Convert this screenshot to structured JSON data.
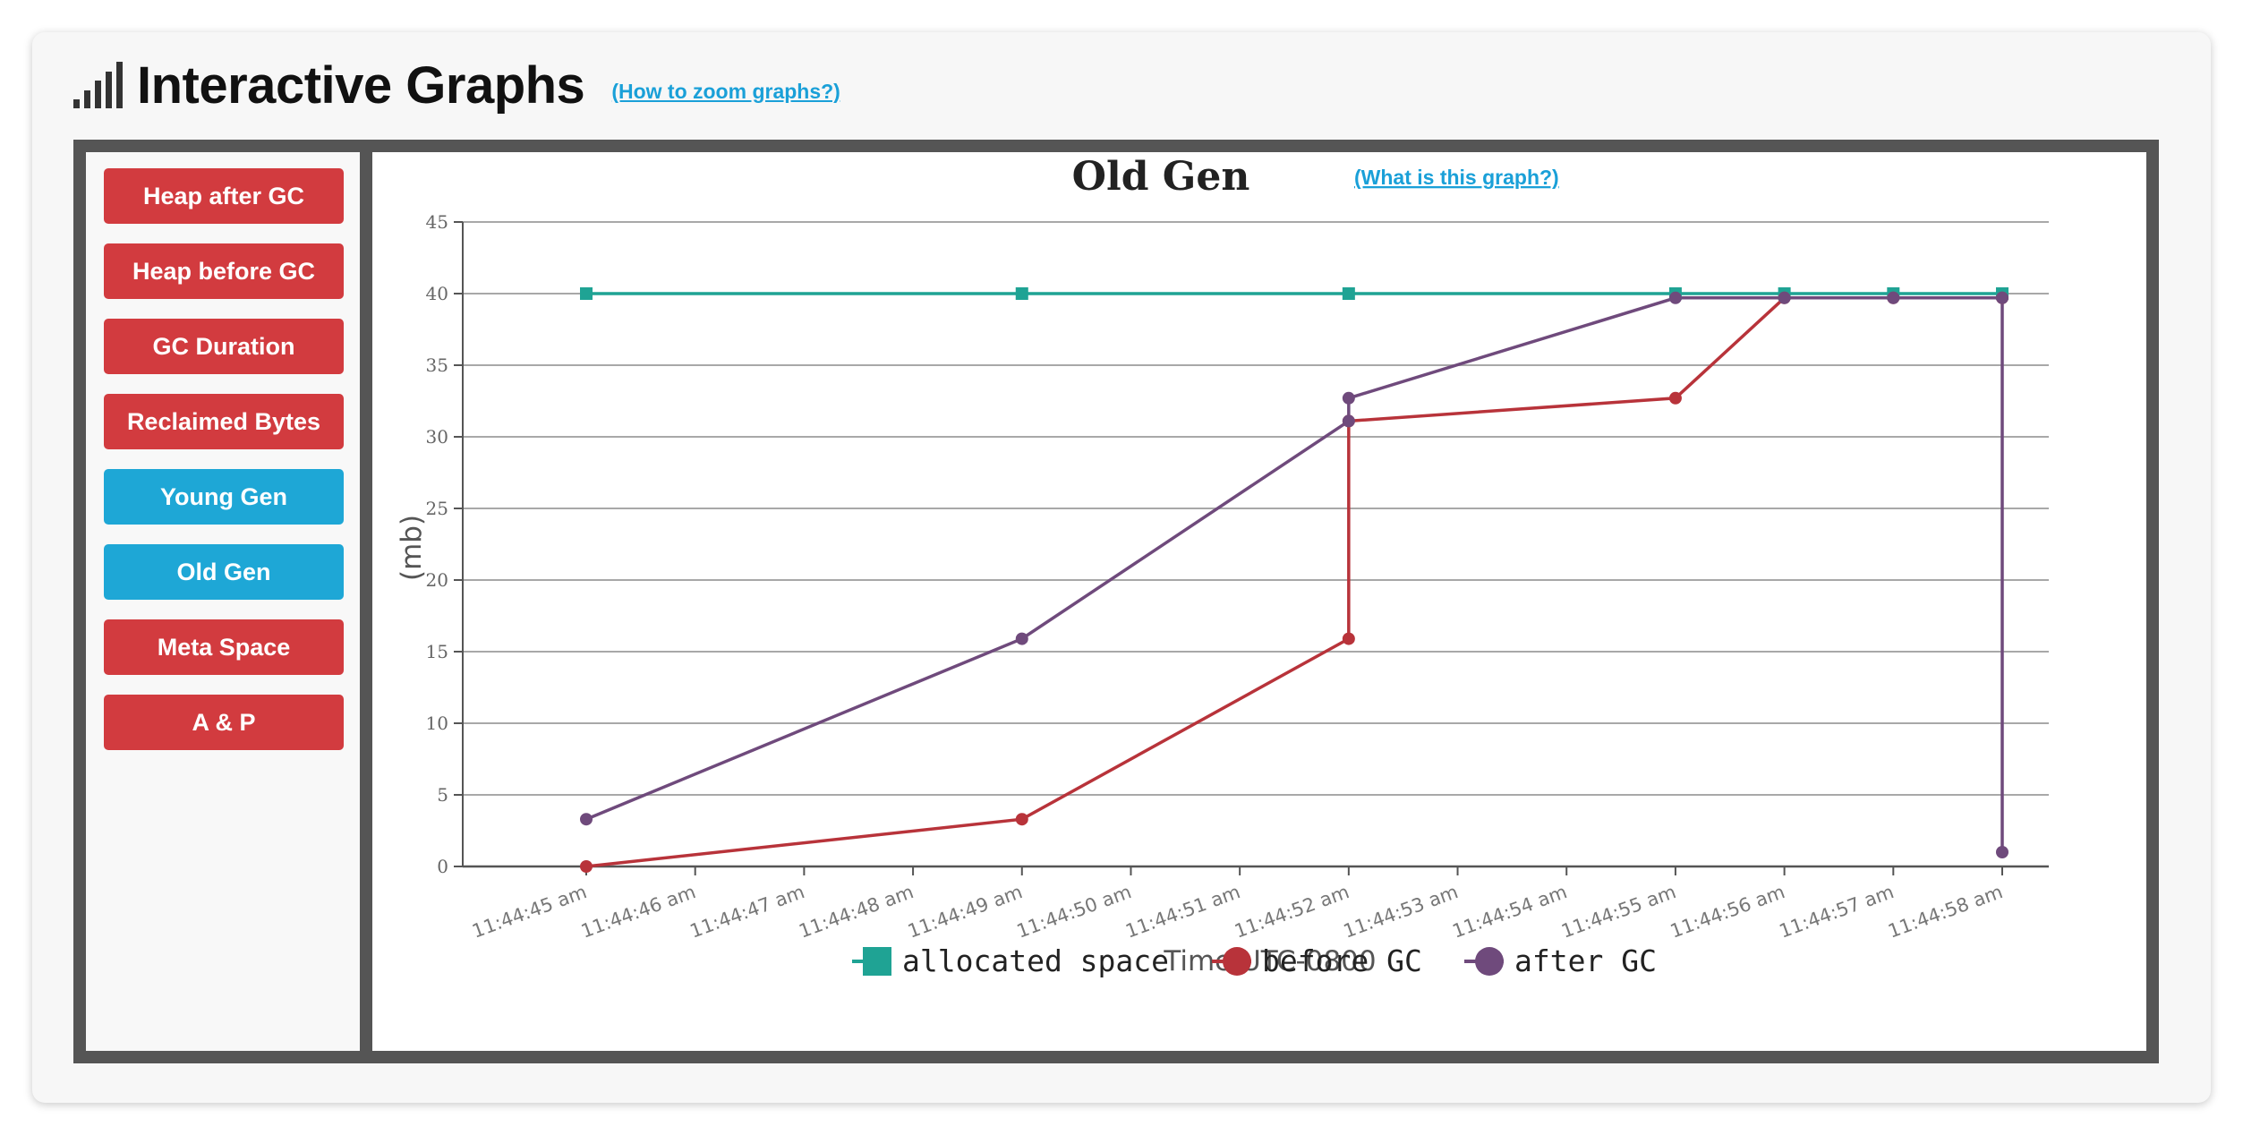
{
  "header": {
    "title": "Interactive Graphs",
    "zoom_link": "(How to zoom graphs?)"
  },
  "sidebar": {
    "buttons": [
      {
        "label": "Heap after GC",
        "color": "#d23b3f"
      },
      {
        "label": "Heap before GC",
        "color": "#d23b3f"
      },
      {
        "label": "GC Duration",
        "color": "#d23b3f"
      },
      {
        "label": "Reclaimed Bytes",
        "color": "#d23b3f"
      },
      {
        "label": "Young Gen",
        "color": "#1ea7d6"
      },
      {
        "label": "Old Gen",
        "color": "#1ea7d6"
      },
      {
        "label": "Meta Space",
        "color": "#d23b3f"
      },
      {
        "label": "A & P",
        "color": "#d23b3f"
      }
    ]
  },
  "chart_data": {
    "type": "line",
    "title": "Old Gen",
    "help_link": "(What is this graph?)",
    "xlabel": "Time UTC-0800",
    "ylabel": "(mb)",
    "ylim": [
      0,
      45
    ],
    "yticks": [
      0,
      5,
      10,
      15,
      20,
      25,
      30,
      35,
      40,
      45
    ],
    "xlim": [
      0,
      13
    ],
    "xticks": [
      "11:44:45 am",
      "11:44:46 am",
      "11:44:47 am",
      "11:44:48 am",
      "11:44:49 am",
      "11:44:50 am",
      "11:44:51 am",
      "11:44:52 am",
      "11:44:53 am",
      "11:44:54 am",
      "11:44:55 am",
      "11:44:56 am",
      "11:44:57 am",
      "11:44:58 am"
    ],
    "grid": true,
    "legend_position": "bottom",
    "series": [
      {
        "name": "allocated space",
        "color": "#1fa394",
        "marker": "square",
        "points": [
          [
            0,
            40
          ],
          [
            4,
            40
          ],
          [
            7,
            40
          ],
          [
            10,
            40
          ],
          [
            11,
            40
          ],
          [
            12,
            40
          ],
          [
            13,
            40
          ]
        ]
      },
      {
        "name": "before GC",
        "color": "#b8333a",
        "marker": "circle",
        "points": [
          [
            0,
            0
          ],
          [
            4,
            3.3
          ],
          [
            7,
            15.9
          ],
          [
            7,
            31.1
          ],
          [
            10,
            32.7
          ],
          [
            11,
            39.7
          ],
          [
            12,
            39.7
          ],
          [
            13,
            39.7
          ]
        ]
      },
      {
        "name": "after GC",
        "color": "#6f4a7c",
        "marker": "circle",
        "points": [
          [
            0,
            3.3
          ],
          [
            4,
            15.9
          ],
          [
            7,
            31.1
          ],
          [
            7,
            32.7
          ],
          [
            10,
            39.7
          ],
          [
            11,
            39.7
          ],
          [
            12,
            39.7
          ],
          [
            13,
            39.7
          ],
          [
            13,
            1
          ]
        ]
      }
    ]
  }
}
